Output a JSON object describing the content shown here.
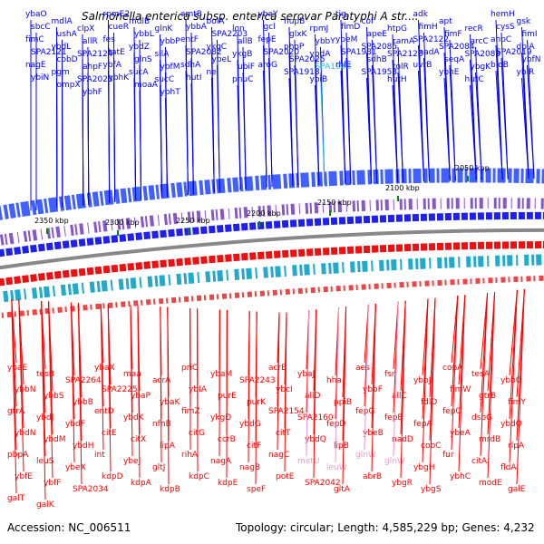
{
  "title": "Salmonella enterica subsp. enterica serovar Paratyphi A str....",
  "footer": {
    "accession": "Accession: NC_006511",
    "summary": "Topology: circular; Length: 4,585,229 bp; Genes: 4,232"
  },
  "colors": {
    "forward_strand": "#0000ff",
    "reverse_strand": "#ff0000",
    "highlight_forward": "#22bbee",
    "highlight_reverse": "#ee99cc",
    "backbone": "#888888",
    "tick": "#008800"
  },
  "ticks": [
    "2350 kbp",
    "2300 kbp",
    "2250 kbp",
    "2200 kbp",
    "2150 kbp",
    "2100 kbp",
    "2050 kbp"
  ],
  "upper_genes": [
    "ybaO",
    "mdlA",
    "clpX",
    "rpmE2",
    "mdlB",
    "glnK",
    "amtB",
    "bolA",
    "lon",
    "ybaY",
    "nupB",
    "rpmJ",
    "tig",
    "cof",
    "htpG",
    "adk",
    "apt",
    "recR",
    "hemH",
    "gsk",
    "sbcC",
    "ushA",
    "allR",
    "cueR",
    "ybbL",
    "ybbP",
    "ybbA",
    "SPA2203",
    "allB",
    "gcl",
    "glxK",
    "ybbY",
    "fimD",
    "apeE",
    "ramA",
    "fimH",
    "fimF",
    "arcC",
    "cysS",
    "fimI",
    "fimC",
    "ybdL",
    "SPA2124",
    "fes",
    "ybdZ",
    "silA",
    "entF",
    "ykgC",
    "ykgB",
    "fepE",
    "phoP",
    "ybdA",
    "ybeM",
    "SPA2085",
    "SPA2123",
    "SPA2122",
    "SPA2084",
    "SPA2083",
    "ahpC",
    "dpiA",
    "SPA2121",
    "cobD",
    "ahpF",
    "tatE",
    "glnS",
    "ybfM",
    "SPA2082",
    "ybeL",
    "ubiF",
    "SPA2020",
    "SPA2025",
    "SPA1988",
    "SPA1981",
    "sdhB",
    "tolR",
    "nadA",
    "seqA",
    "ybgK",
    "SPA2019",
    "ybfN",
    "nagE",
    "pgm",
    "SPA2023",
    "ybfA",
    "sucA",
    "sucC",
    "sdhA",
    "nei",
    "pnuC",
    "aroG",
    "SPA1918",
    "ybiB",
    "rhlE",
    "SPA1953",
    "hutH",
    "uvrB",
    "ybhE",
    "hutC",
    "bioB",
    "ybiR",
    "ybiN",
    "ompX",
    "ybhF",
    "ybhK",
    "moaA",
    "ybhT",
    "hutI"
  ],
  "lower_genes": [
    "ybaE",
    "tesB",
    "SPA2264",
    "ybaX",
    "maa",
    "acrA",
    "priC",
    "ybaM",
    "SPA2243",
    "acrB",
    "ybaJ",
    "hha",
    "aes",
    "fsr",
    "ybbJ",
    "copA",
    "tesA",
    "ybbO",
    "ybbN",
    "ybbS",
    "ybbB",
    "SPA2225",
    "ybaP",
    "ybaK",
    "ybIA",
    "purE",
    "purK",
    "ybcI",
    "allD",
    "ppiB",
    "ybbF",
    "allC",
    "fdlD",
    "fimW",
    "gtrB",
    "fimY",
    "gtrA",
    "ybdJ",
    "ybdF",
    "entD",
    "ybdK",
    "nfnB",
    "fimZ",
    "ykgD",
    "ybdG",
    "SPA2154",
    "SPA2160",
    "fepD",
    "fepG",
    "fepB",
    "fepA",
    "fepC",
    "dsbG",
    "ybdO",
    "ybdN",
    "ybdM",
    "ybdH",
    "citE",
    "citX",
    "lipA",
    "citG",
    "ccrB",
    "citF",
    "citT",
    "ybdQ",
    "lipB",
    "ybeB",
    "nadD",
    "cobC",
    "ybeA",
    "mrdB",
    "rlpA",
    "pbpA",
    "leuS",
    "ybeX",
    "int",
    "ybeJ",
    "gltJ",
    "rihA",
    "nagA",
    "nagB",
    "nagC",
    "metU",
    "leuW",
    "glnW",
    "glnW",
    "ybgH",
    "fur",
    "citA",
    "fldA",
    "ybfE",
    "ybfF",
    "SPA2034",
    "kdpD",
    "kdpA",
    "kdpB",
    "kdpC",
    "kdpE",
    "speF",
    "potE",
    "SPA2042",
    "gltA",
    "abrB",
    "ybgR",
    "ybgS",
    "ybhC",
    "modE",
    "galE",
    "galT",
    "galK"
  ]
}
